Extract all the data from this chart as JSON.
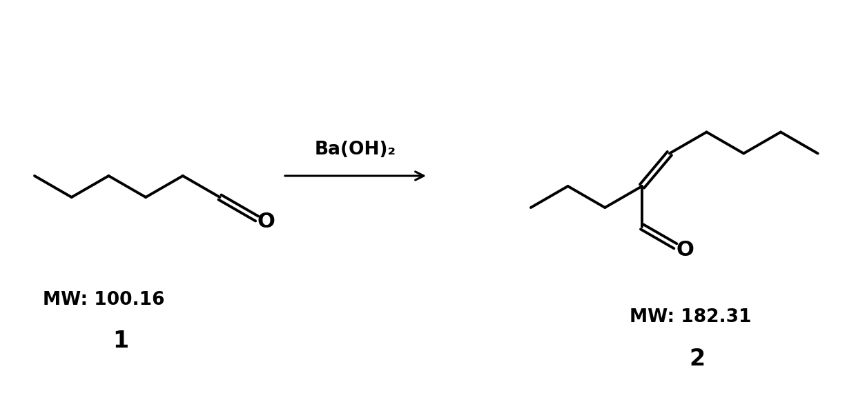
{
  "bg_color": "#ffffff",
  "line_color": "#000000",
  "line_width": 2.8,
  "arrow_label": "Ba(OH)₂",
  "reactant_mw": "MW: 100.16",
  "reactant_num": "1",
  "product_mw": "MW: 182.31",
  "product_num": "2",
  "font_size_mw": 19,
  "font_size_num": 24,
  "font_size_arrow": 19
}
